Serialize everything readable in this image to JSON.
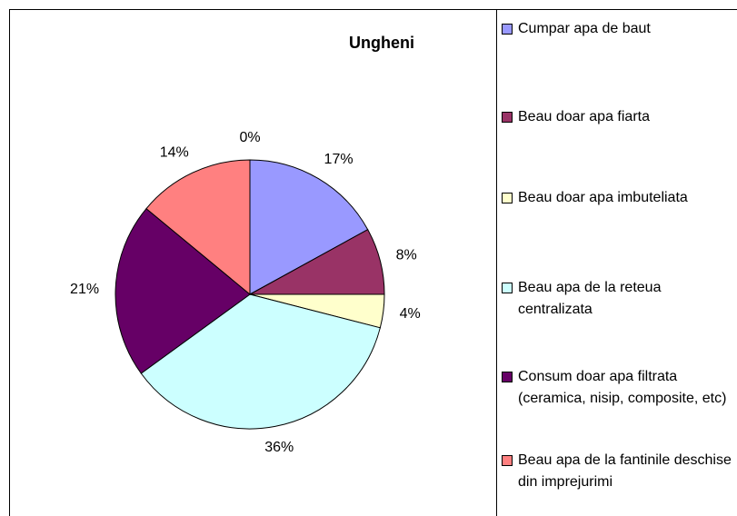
{
  "chart_data": {
    "type": "pie",
    "title": "Ungheni",
    "categories": [
      "Cumpar apa de baut",
      "Beau doar apa fiarta",
      "Beau doar apa imbuteliata",
      "Beau apa de la reteua centralizata",
      "Consum doar apa filtrata (ceramica, nisip, composite, etc)",
      "Beau apa de la fantinile deschise din imprejurimi",
      null
    ],
    "values": [
      17,
      8,
      4,
      36,
      21,
      14,
      0
    ],
    "value_labels": [
      "17%",
      "8%",
      "4%",
      "36%",
      "21%",
      "14%",
      "0%"
    ],
    "colors": [
      "#9999ff",
      "#993366",
      "#ffffcc",
      "#ccffff",
      "#660066",
      "#ff8080",
      "#0066cc"
    ],
    "legend": "right"
  }
}
